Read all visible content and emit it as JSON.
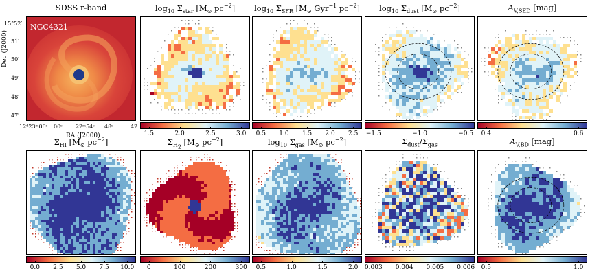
{
  "figure": {
    "galaxy_label": "NGC4321",
    "sdss_title": "SDSS r-band",
    "ra_label": "RA (J2000)",
    "dec_label": "Dec (J2000)",
    "ra_ticks": [
      "12ᵈ23ᵐ06ˢ",
      "00ˢ",
      "22ᵐ54ˢ",
      "48ˢ",
      "42"
    ],
    "dec_ticks": [
      "15°52′",
      "51′",
      "50′",
      "49′",
      "48′",
      "47′"
    ]
  },
  "panels": [
    {
      "title_html": "log<sub>10</sub> Σ<sub>star</sub> [M<sub>⊙</sub> pc<sup>−2</sup>]",
      "ticks": [
        "1.5",
        "2.0",
        "2.5",
        "3.0"
      ]
    },
    {
      "title_html": "log<sub>10</sub> Σ<sub>SFR</sub> [M<sub>⊙</sub> Gyr<sup>−1</sup> pc<sup>−2</sup>]",
      "ticks": [
        "0.5",
        "1.0",
        "1.5",
        "2.0",
        "2.5"
      ]
    },
    {
      "title_html": "log<sub>10</sub> Σ<sub>dust</sub> [M<sub>⊙</sub> pc<sup>−2</sup>]",
      "ticks": [
        "−1.5",
        "−1.0",
        "−0.5"
      ]
    },
    {
      "title_html": "<i>A</i><sub>V,SED</sub> [mag]",
      "ticks": [
        "0.4",
        "0.6"
      ]
    },
    {
      "title_html": "Σ<sub>HI</sub> [M<sub>⊙</sub> pc<sup>−2</sup>]",
      "ticks": [
        "0.0",
        "2.5",
        "5.0",
        "7.5",
        "10.0"
      ]
    },
    {
      "title_html": "Σ<sub>H<sub>2</sub></sub> [M<sub>⊙</sub> pc<sup>−2</sup>]",
      "ticks": [
        "0",
        "100",
        "200",
        "300"
      ]
    },
    {
      "title_html": "log<sub>10</sub> Σ<sub>gas</sub> [M<sub>⊙</sub> pc<sup>−2</sup>]",
      "ticks": [
        "0.5",
        "1.0",
        "1.5",
        "2.0"
      ]
    },
    {
      "title_html": "Σ<sub>dust</sub>/Σ<sub>gas</sub>",
      "ticks": [
        "0.003",
        "0.004",
        "0.005",
        "0.006"
      ]
    },
    {
      "title_html": "<i>A</i><sub>V,BD</sub> [mag]",
      "ticks": [
        "0.5",
        "1.0"
      ]
    }
  ],
  "colors": {
    "sdss_outer": "#c2272f",
    "sdss_mid": "#e4653a",
    "sdss_arm": "#f09a52",
    "nucleus": "#1e3a8a",
    "ramp_red": "#a50026",
    "ramp_orange": "#f46d43",
    "ramp_yellow": "#fee090",
    "ramp_light": "#e0f3f8",
    "ramp_mid_blue": "#74add1",
    "ramp_blue": "#313695"
  }
}
